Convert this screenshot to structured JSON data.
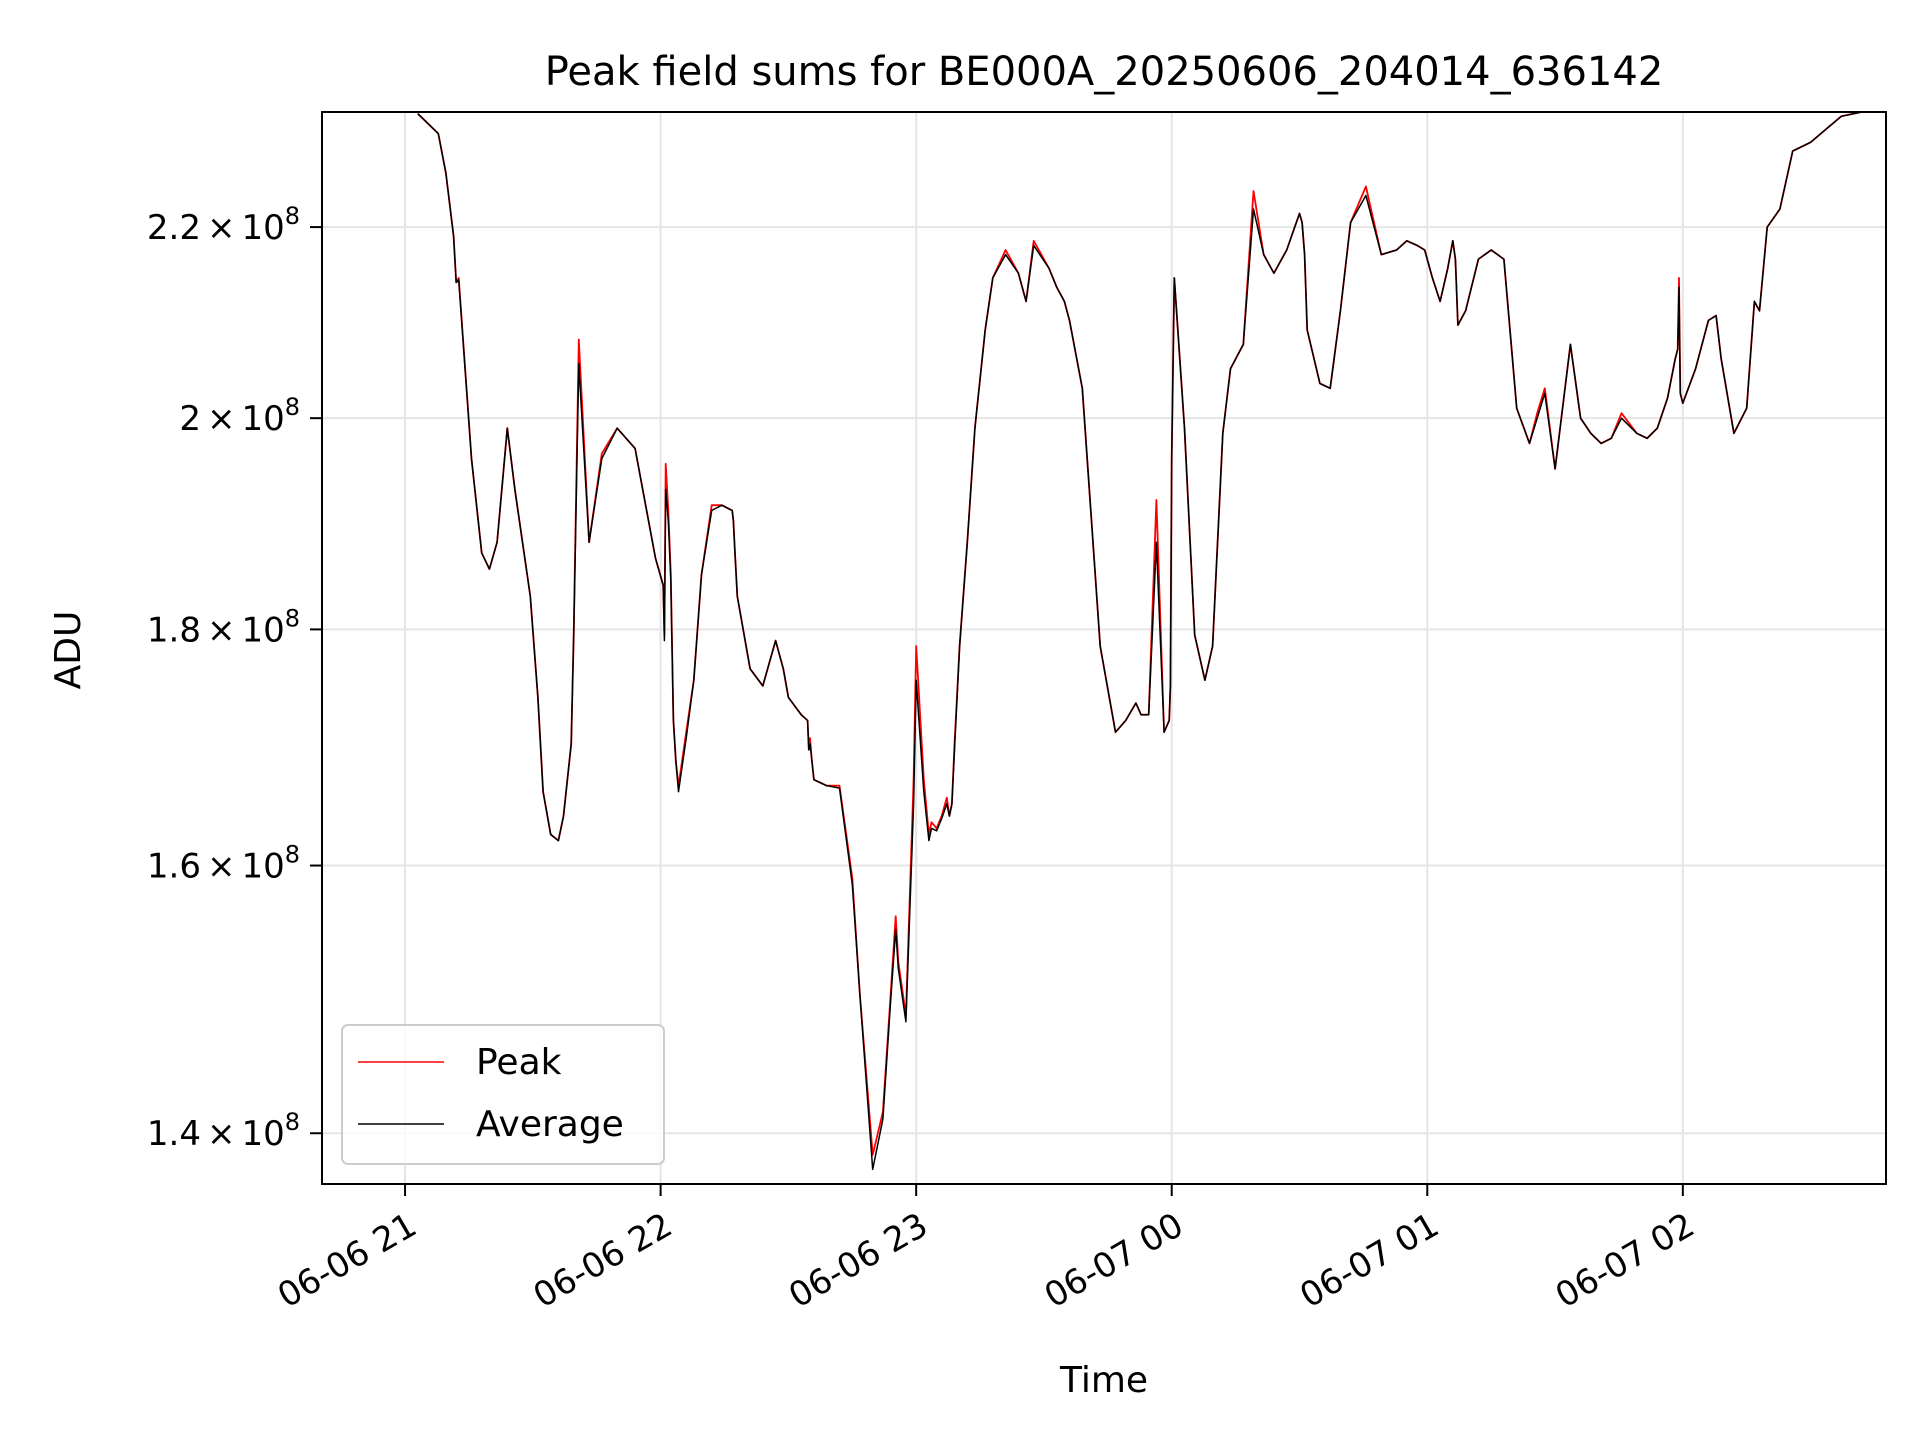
{
  "chart_data": {
    "type": "line",
    "title": "Peak field sums for BE000A_20250606_204014_636142",
    "xlabel": "Time",
    "ylabel": "ADU",
    "x_unit": "hours",
    "x_ticks": [
      {
        "value": 21.0,
        "label": "06-06 21"
      },
      {
        "value": 22.0,
        "label": "06-06 22"
      },
      {
        "value": 23.0,
        "label": "06-06 23"
      },
      {
        "value": 24.0,
        "label": "06-07 00"
      },
      {
        "value": 25.0,
        "label": "06-07 01"
      },
      {
        "value": 26.0,
        "label": "06-07 02"
      }
    ],
    "y_ticks": [
      {
        "value": 140000000,
        "mantissa": "1.4",
        "times": "×",
        "base": "10",
        "exp": "8"
      },
      {
        "value": 160000000,
        "mantissa": "1.6",
        "times": "×",
        "base": "10",
        "exp": "8"
      },
      {
        "value": 180000000,
        "mantissa": "1.8",
        "times": "×",
        "base": "10",
        "exp": "8"
      },
      {
        "value": 200000000,
        "mantissa": "2",
        "times": "×",
        "base": "10",
        "exp": "8"
      },
      {
        "value": 220000000,
        "mantissa": "2.2",
        "times": "×",
        "base": "10",
        "exp": "8"
      }
    ],
    "xlim": [
      20.675,
      26.795
    ],
    "ylim": [
      136500000,
      233000000
    ],
    "y_scale": "log",
    "grid": true,
    "legend_position": "lower-left",
    "series": [
      {
        "name": "Peak",
        "color": "#ff0000",
        "x": [
          21.05,
          21.13,
          21.16,
          21.19,
          21.2,
          21.21,
          21.26,
          21.3,
          21.33,
          21.36,
          21.4,
          21.43,
          21.49,
          21.52,
          21.54,
          21.57,
          21.6,
          21.62,
          21.63,
          21.65,
          21.66,
          21.68,
          21.72,
          21.77,
          21.83,
          21.9,
          21.98,
          22.01,
          22.015,
          22.02,
          22.03,
          22.04,
          22.05,
          22.06,
          22.07,
          22.08,
          22.1,
          22.13,
          22.16,
          22.2,
          22.24,
          22.28,
          22.285,
          22.29,
          22.3,
          22.35,
          22.4,
          22.45,
          22.48,
          22.5,
          22.55,
          22.575,
          22.58,
          22.585,
          22.59,
          22.6,
          22.65,
          22.7,
          22.75,
          22.78,
          22.83,
          22.87,
          22.9,
          22.92,
          22.93,
          22.96,
          22.99,
          23.0,
          23.03,
          23.05,
          23.06,
          23.08,
          23.1,
          23.12,
          23.13,
          23.14,
          23.15,
          23.17,
          23.2,
          23.23,
          23.27,
          23.3,
          23.35,
          23.4,
          23.43,
          23.46,
          23.52,
          23.55,
          23.58,
          23.59,
          23.6,
          23.65,
          23.72,
          23.78,
          23.82,
          23.86,
          23.88,
          23.91,
          23.94,
          23.97,
          23.99,
          23.995,
          24.0,
          24.01,
          24.05,
          24.09,
          24.13,
          24.16,
          24.2,
          24.23,
          24.28,
          24.32,
          24.36,
          24.4,
          24.45,
          24.5,
          24.51,
          24.52,
          24.53,
          24.58,
          24.62,
          24.66,
          24.7,
          24.76,
          24.82,
          24.88,
          24.92,
          24.96,
          24.99,
          25.02,
          25.05,
          25.08,
          25.1,
          25.11,
          25.12,
          25.15,
          25.2,
          25.25,
          25.3,
          25.35,
          25.4,
          25.43,
          25.46,
          25.5,
          25.56,
          25.6,
          25.64,
          25.68,
          25.72,
          25.76,
          25.82,
          25.86,
          25.9,
          25.94,
          25.97,
          25.98,
          25.985,
          25.99,
          26.0,
          26.05,
          26.1,
          26.13,
          26.15,
          26.2,
          26.25,
          26.28,
          26.3,
          26.33,
          26.38,
          26.43,
          26.5,
          26.56,
          26.62,
          26.7
        ],
        "y": [
          232800000,
          230500000,
          226000000,
          219000000,
          214000000,
          214500000,
          196000000,
          187000000,
          185500000,
          188000000,
          199000000,
          193000000,
          183000000,
          174000000,
          166000000,
          162500000,
          162000000,
          164000000,
          166000000,
          170000000,
          179500000,
          208000000,
          188000000,
          196500000,
          199000000,
          197000000,
          186500000,
          184000000,
          179500000,
          195500000,
          191000000,
          185000000,
          172000000,
          168500000,
          166500000,
          168000000,
          171000000,
          175500000,
          185000000,
          191500000,
          191500000,
          191000000,
          190000000,
          187500000,
          183000000,
          176500000,
          175000000,
          179000000,
          176500000,
          174000000,
          172500000,
          172000000,
          169500000,
          170500000,
          169000000,
          167000000,
          166500000,
          166500000,
          159000000,
          150000000,
          138500000,
          141500000,
          150000000,
          156000000,
          152500000,
          148500000,
          167000000,
          178500000,
          167000000,
          162500000,
          163500000,
          163000000,
          164000000,
          165500000,
          164000000,
          165000000,
          170000000,
          178500000,
          188000000,
          199000000,
          209000000,
          214500000,
          217500000,
          215000000,
          212000000,
          218500000,
          215500000,
          213500000,
          212000000,
          211000000,
          210000000,
          203000000,
          178500000,
          171000000,
          172000000,
          173500000,
          172500000,
          172500000,
          192000000,
          171000000,
          172000000,
          175000000,
          196000000,
          214500000,
          199000000,
          179500000,
          175500000,
          178500000,
          198500000,
          205000000,
          207500000,
          224000000,
          217000000,
          215000000,
          217500000,
          221500000,
          220500000,
          217000000,
          209000000,
          203500000,
          203000000,
          211000000,
          220500000,
          224500000,
          217000000,
          217500000,
          218500000,
          218000000,
          217500000,
          214500000,
          212000000,
          215500000,
          218500000,
          216500000,
          209500000,
          211000000,
          216500000,
          217500000,
          216500000,
          201000000,
          197500000,
          200500000,
          203000000,
          195000000,
          207500000,
          200000000,
          198500000,
          197500000,
          198000000,
          200500000,
          198500000,
          198000000,
          199000000,
          202000000,
          206000000,
          207000000,
          214500000,
          202500000,
          201500000,
          205000000,
          210000000,
          210500000,
          206000000,
          198500000,
          201000000,
          212000000,
          211000000,
          220000000,
          222000000,
          228500000,
          229500000,
          231000000,
          232500000,
          233000000
        ]
      },
      {
        "name": "Average",
        "color": "#000000",
        "x": [
          21.05,
          21.13,
          21.16,
          21.19,
          21.2,
          21.21,
          21.26,
          21.3,
          21.33,
          21.36,
          21.4,
          21.43,
          21.49,
          21.52,
          21.54,
          21.57,
          21.6,
          21.62,
          21.63,
          21.65,
          21.66,
          21.68,
          21.72,
          21.77,
          21.83,
          21.9,
          21.98,
          22.01,
          22.015,
          22.02,
          22.03,
          22.04,
          22.05,
          22.06,
          22.07,
          22.08,
          22.1,
          22.13,
          22.16,
          22.2,
          22.24,
          22.28,
          22.285,
          22.29,
          22.3,
          22.35,
          22.4,
          22.45,
          22.48,
          22.5,
          22.55,
          22.575,
          22.58,
          22.585,
          22.59,
          22.6,
          22.65,
          22.7,
          22.75,
          22.78,
          22.83,
          22.87,
          22.9,
          22.92,
          22.93,
          22.96,
          22.99,
          23.0,
          23.03,
          23.05,
          23.06,
          23.08,
          23.1,
          23.12,
          23.13,
          23.14,
          23.15,
          23.17,
          23.2,
          23.23,
          23.27,
          23.3,
          23.35,
          23.4,
          23.43,
          23.46,
          23.52,
          23.55,
          23.58,
          23.59,
          23.6,
          23.65,
          23.72,
          23.78,
          23.82,
          23.86,
          23.88,
          23.91,
          23.94,
          23.97,
          23.99,
          23.995,
          24.0,
          24.01,
          24.05,
          24.09,
          24.13,
          24.16,
          24.2,
          24.23,
          24.28,
          24.32,
          24.36,
          24.4,
          24.45,
          24.5,
          24.51,
          24.52,
          24.53,
          24.58,
          24.62,
          24.66,
          24.7,
          24.76,
          24.82,
          24.88,
          24.92,
          24.96,
          24.99,
          25.02,
          25.05,
          25.08,
          25.1,
          25.11,
          25.12,
          25.15,
          25.2,
          25.25,
          25.3,
          25.35,
          25.4,
          25.43,
          25.46,
          25.5,
          25.56,
          25.6,
          25.64,
          25.68,
          25.72,
          25.76,
          25.82,
          25.86,
          25.9,
          25.94,
          25.97,
          25.98,
          25.985,
          25.99,
          26.0,
          26.05,
          26.1,
          26.13,
          26.15,
          26.2,
          26.25,
          26.28,
          26.3,
          26.33,
          26.38,
          26.43,
          26.5,
          26.56,
          26.62,
          26.7
        ],
        "y": [
          232800000,
          230500000,
          226000000,
          219000000,
          214000000,
          214300000,
          196000000,
          187000000,
          185500000,
          188000000,
          199000000,
          193000000,
          183000000,
          174000000,
          166000000,
          162500000,
          162000000,
          164000000,
          166000000,
          170000000,
          179500000,
          205500000,
          188000000,
          196000000,
          199000000,
          197000000,
          186500000,
          184000000,
          179000000,
          193000000,
          190000000,
          184500000,
          172000000,
          168500000,
          166000000,
          167500000,
          170500000,
          175500000,
          185000000,
          191000000,
          191500000,
          191000000,
          190000000,
          187500000,
          183000000,
          176500000,
          175000000,
          179000000,
          176500000,
          174000000,
          172500000,
          172000000,
          169500000,
          170000000,
          169000000,
          167000000,
          166500000,
          166300000,
          158500000,
          150000000,
          137500000,
          141000000,
          149500000,
          155000000,
          152000000,
          148000000,
          165000000,
          175500000,
          166000000,
          162000000,
          163000000,
          162800000,
          163800000,
          165000000,
          164000000,
          165000000,
          169500000,
          178500000,
          188000000,
          199000000,
          209000000,
          214500000,
          217000000,
          215000000,
          212000000,
          218000000,
          215500000,
          213500000,
          212000000,
          211000000,
          210000000,
          203000000,
          178500000,
          171000000,
          172000000,
          173500000,
          172500000,
          172500000,
          188000000,
          171000000,
          172000000,
          175000000,
          196000000,
          214500000,
          199000000,
          179500000,
          175500000,
          178500000,
          198500000,
          205000000,
          207500000,
          222000000,
          217000000,
          215000000,
          217500000,
          221500000,
          220500000,
          217000000,
          209000000,
          203500000,
          203000000,
          211000000,
          220500000,
          223500000,
          217000000,
          217500000,
          218500000,
          218000000,
          217500000,
          214500000,
          212000000,
          215500000,
          218500000,
          216500000,
          209500000,
          211000000,
          216500000,
          217500000,
          216500000,
          201000000,
          197500000,
          200000000,
          202500000,
          195000000,
          207500000,
          200000000,
          198500000,
          197500000,
          198000000,
          200000000,
          198500000,
          198000000,
          199000000,
          202000000,
          206000000,
          207000000,
          213500000,
          202500000,
          201500000,
          205000000,
          210000000,
          210500000,
          206000000,
          198500000,
          201000000,
          212000000,
          211000000,
          220000000,
          222000000,
          228500000,
          229500000,
          231000000,
          232500000,
          233000000
        ]
      }
    ]
  }
}
